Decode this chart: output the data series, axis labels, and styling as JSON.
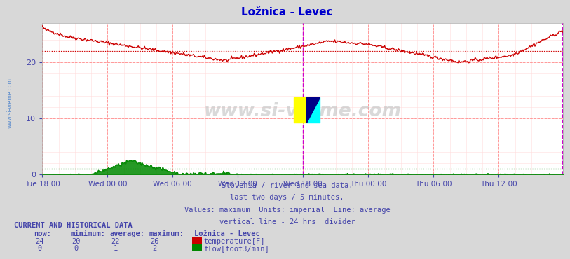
{
  "title": "Ložnica - Levec",
  "title_color": "#0000cc",
  "bg_color": "#d8d8d8",
  "plot_bg_color": "#ffffff",
  "grid_color_major": "#ff9999",
  "grid_color_minor": "#ffdddd",
  "axis_label_color": "#4444aa",
  "text_color": "#4444aa",
  "ylabel_ticks": [
    0,
    10,
    20
  ],
  "ylim": [
    0,
    27
  ],
  "tick_labels": [
    "Tue 18:00",
    "Wed 00:00",
    "Wed 06:00",
    "Wed 12:00",
    "Wed 18:00",
    "Thu 00:00",
    "Thu 06:00",
    "Thu 12:00"
  ],
  "tick_positions": [
    0,
    72,
    144,
    216,
    288,
    360,
    432,
    504
  ],
  "n_points": 576,
  "vertical_line_24h": 288,
  "avg_temp_line": 22,
  "avg_flow_line": 1,
  "caption_lines": [
    "Slovenia / river and sea data.",
    "last two days / 5 minutes.",
    "Values: maximum  Units: imperial  Line: average",
    "vertical line - 24 hrs  divider"
  ],
  "current_data_title": "CURRENT AND HISTORICAL DATA",
  "table_headers": [
    "now:",
    "minimum:",
    "average:",
    "maximum:",
    "Ložnica - Levec"
  ],
  "temp_row": [
    "24",
    "20",
    "22",
    "26",
    "temperature[F]"
  ],
  "flow_row": [
    "0",
    "0",
    "1",
    "2",
    "flow[foot3/min]"
  ],
  "temp_color": "#cc0000",
  "flow_color": "#008800",
  "watermark": "www.si-vreme.com",
  "left_label": "www.si-vreme.com",
  "logo_yellow": "#ffff00",
  "logo_cyan": "#00ffff",
  "logo_blue": "#000088"
}
